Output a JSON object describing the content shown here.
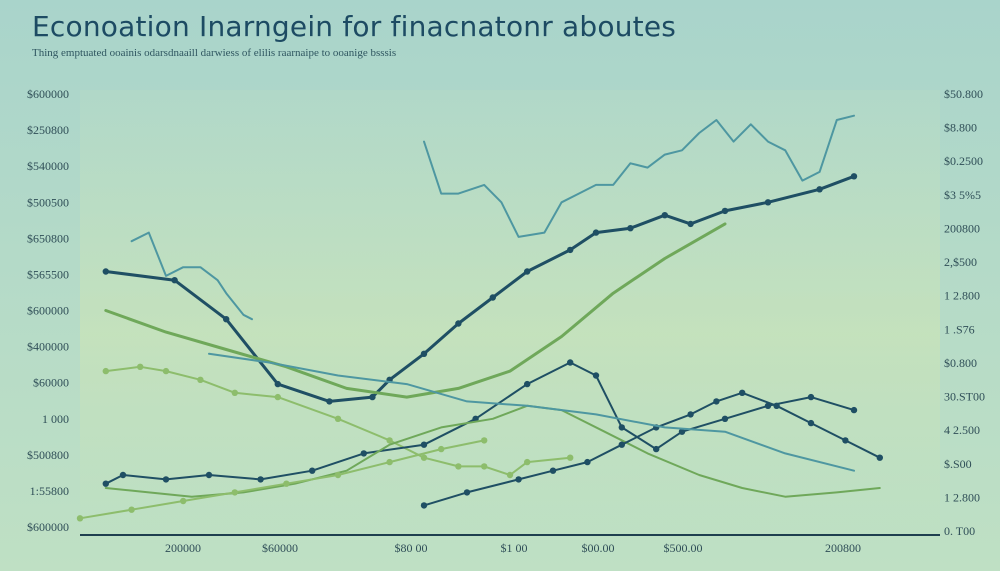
{
  "chart_data": {
    "type": "line",
    "title": "Econoation Inarngein for finacnatonr aboutes",
    "subtitle": "Thing emptuated ooainis odarsdnaaill darwiess of elilis raarnaipe to ooanige bsssis",
    "y_ticks_left": [
      "$600000",
      "$250800",
      "$540000",
      "$500500",
      "$650800",
      "$565500",
      "$600000",
      "$400000",
      "$60000",
      "1 000",
      "$500800",
      "1:55800",
      "$600000"
    ],
    "y_ticks_right": [
      "$50.800",
      "$8.800",
      "$0.2500",
      "$3 5%5",
      "200800",
      "2,$500",
      "1 2.800",
      "1 .S76",
      "$0.800",
      "30.ST00",
      "4 2.500",
      "$.S00",
      "1 2.800",
      "0. T00"
    ],
    "x_ticks": [
      "200000",
      "$60000",
      "$80 00",
      "$1 00",
      "$00.00",
      "$500.00",
      "200800"
    ],
    "ylim": [
      0,
      100
    ],
    "xlim": [
      0,
      100
    ],
    "series": [
      {
        "name": "series-1",
        "color": "#4e97a1",
        "x": [
          40,
          42,
          44,
          47,
          49,
          51,
          54,
          56,
          58,
          60,
          62,
          64,
          66,
          68,
          70,
          72,
          74,
          76,
          78,
          80,
          82,
          84,
          86,
          88,
          90
        ],
        "y": [
          89,
          77,
          77,
          79,
          75,
          67,
          68,
          75,
          77,
          79,
          79,
          84,
          83,
          86,
          87,
          91,
          94,
          89,
          93,
          89,
          87,
          80,
          82,
          94,
          95
        ],
        "markers": false
      },
      {
        "name": "series-2",
        "color": "#4e97a1",
        "x": [
          6,
          8,
          10,
          12,
          14,
          16,
          17,
          19,
          20
        ],
        "y": [
          66,
          68,
          58,
          60,
          60,
          57,
          54,
          49,
          48
        ],
        "markers": false
      },
      {
        "name": "series-3",
        "color": "#1f4f64",
        "x": [
          3,
          11,
          17,
          23,
          29,
          34,
          36,
          40,
          44,
          48,
          52,
          57,
          60,
          64,
          68,
          71,
          75,
          80,
          86,
          90
        ],
        "y": [
          59,
          57,
          48,
          33,
          29,
          30,
          34,
          40,
          47,
          53,
          59,
          64,
          68,
          69,
          72,
          70,
          73,
          75,
          78,
          81
        ],
        "markers": true
      },
      {
        "name": "series-4",
        "color": "#6fa85a",
        "x": [
          3,
          10,
          17,
          24,
          31,
          38,
          44,
          50,
          56,
          62,
          68,
          75
        ],
        "y": [
          50,
          45,
          41,
          37,
          32,
          30,
          32,
          36,
          44,
          54,
          62,
          70
        ],
        "markers": false
      },
      {
        "name": "series-5",
        "color": "#8dbd6c",
        "x": [
          3,
          7,
          10,
          14,
          18,
          23,
          30,
          36,
          40,
          44,
          47,
          50,
          52,
          57
        ],
        "y": [
          36,
          37,
          36,
          34,
          31,
          30,
          25,
          20,
          16,
          14,
          14,
          12,
          15,
          16
        ],
        "markers": true
      },
      {
        "name": "series-6",
        "color": "#1f4f64",
        "x": [
          3,
          5,
          10,
          15,
          21,
          27,
          33,
          40,
          46,
          52,
          57,
          60,
          63,
          67,
          70,
          75,
          80,
          85,
          90
        ],
        "y": [
          10,
          12,
          11,
          12,
          11,
          13,
          17,
          19,
          25,
          33,
          38,
          35,
          23,
          18,
          22,
          25,
          28,
          30,
          27
        ],
        "markers": true
      },
      {
        "name": "series-7",
        "color": "#6fa85a",
        "x": [
          3,
          8,
          13,
          19,
          25,
          31,
          36,
          42,
          48,
          52,
          56,
          61,
          66,
          72,
          77,
          82,
          88,
          93
        ],
        "y": [
          9,
          8,
          7,
          8,
          10,
          13,
          19,
          23,
          25,
          28,
          27,
          22,
          17,
          12,
          9,
          7,
          8,
          9
        ],
        "markers": false
      },
      {
        "name": "series-8",
        "color": "#1f4f64",
        "x": [
          40,
          45,
          51,
          55,
          59,
          63,
          67,
          71,
          74,
          77,
          81,
          85,
          89,
          93
        ],
        "y": [
          5,
          8,
          11,
          13,
          15,
          19,
          23,
          26,
          29,
          31,
          28,
          24,
          20,
          16
        ],
        "markers": true
      },
      {
        "name": "series-9",
        "color": "#8dbd6c",
        "x": [
          0,
          6,
          12,
          18,
          24,
          30,
          36,
          42,
          47
        ],
        "y": [
          2,
          4,
          6,
          8,
          10,
          12,
          15,
          18,
          20
        ],
        "markers": true
      },
      {
        "name": "series-10",
        "color": "#4e97a1",
        "x": [
          15,
          22,
          30,
          38,
          45,
          52,
          60,
          68,
          75,
          82,
          90
        ],
        "y": [
          40,
          38,
          35,
          33,
          29,
          28,
          26,
          23,
          22,
          17,
          13
        ],
        "markers": false
      }
    ]
  }
}
